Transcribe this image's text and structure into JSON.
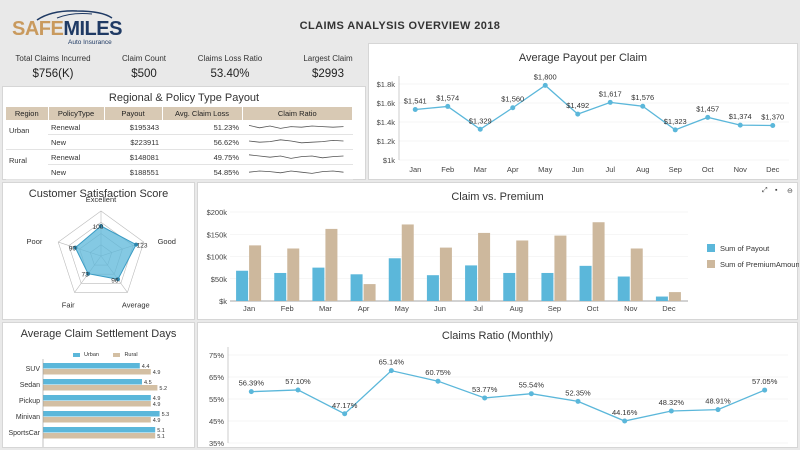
{
  "header": {
    "logo_main_1": "SAFE",
    "logo_main_2": "MILES",
    "logo_sub": "Auto Insurance",
    "title": "CLAIMS ANALYSIS OVERVIEW 2018"
  },
  "kpis": [
    {
      "label": "Total Claims Incurred",
      "value": "$756(K)"
    },
    {
      "label": "Claim Count",
      "value": "$500"
    },
    {
      "label": "Claims Loss Ratio",
      "value": "53.40%"
    },
    {
      "label": "Largest Claim",
      "value": "$2993"
    }
  ],
  "region_table": {
    "title": "Regional & Policy Type Payout",
    "headers": [
      "Region",
      "PolicyType",
      "Payout",
      "Avg. Claim Loss",
      "Claim Ratio"
    ],
    "rows": [
      {
        "region": "Urban",
        "type": "Renewal",
        "payout": "$195343",
        "avg": "51.23%",
        "spark": [
          0.55,
          0.35,
          0.5,
          0.3,
          0.45,
          0.4,
          0.5,
          0.45,
          0.4,
          0.45
        ]
      },
      {
        "region": "",
        "type": "New",
        "payout": "$223911",
        "avg": "56.62%",
        "spark": [
          0.5,
          0.4,
          0.45,
          0.6,
          0.5,
          0.35,
          0.4,
          0.45,
          0.55,
          0.5
        ]
      },
      {
        "region": "Rural",
        "type": "Renewal",
        "payout": "$148081",
        "avg": "49.75%",
        "spark": [
          0.6,
          0.5,
          0.4,
          0.5,
          0.3,
          0.45,
          0.5,
          0.35,
          0.45,
          0.5
        ]
      },
      {
        "region": "",
        "type": "New",
        "payout": "$188551",
        "avg": "54.85%",
        "spark": [
          0.4,
          0.5,
          0.45,
          0.35,
          0.5,
          0.4,
          0.3,
          0.45,
          0.5,
          0.4
        ]
      }
    ]
  },
  "satisfaction": {
    "title": "Customer Satisfaction Score",
    "axes": [
      "Excellent",
      "Good",
      "Average",
      "Fair",
      "Poor"
    ],
    "values": [
      100,
      123,
      96,
      73,
      90
    ],
    "max": 150,
    "color": "#5bb7da"
  },
  "settlement": {
    "title": "Average Claim Settlement Days",
    "legend": [
      "Urban",
      "Rural"
    ],
    "colors": [
      "#5bb7da",
      "#d3bfa3"
    ],
    "categories": [
      "SUV",
      "Sedan",
      "Pickup",
      "Minivan",
      "SportsCar"
    ],
    "urban": [
      4.4,
      4.5,
      4.9,
      5.3,
      5.1
    ],
    "rural": [
      4.9,
      5.2,
      4.9,
      4.9,
      5.1
    ],
    "urban_labels": [
      "4.4",
      "4.5",
      "4.9",
      "5.3",
      "5.1"
    ],
    "rural_labels": [
      "4.9",
      "5.2",
      "4.9",
      "4.9",
      "5.1"
    ]
  },
  "chart_data": [
    {
      "type": "line",
      "title": "Average Payout per Claim",
      "x": [
        "Jan",
        "Feb",
        "Mar",
        "Apr",
        "May",
        "Jun",
        "Jul",
        "Aug",
        "Sep",
        "Oct",
        "Nov",
        "Dec"
      ],
      "values": [
        1541,
        1574,
        1329,
        1560,
        1800,
        1492,
        1617,
        1576,
        1323,
        1457,
        1374,
        1370
      ],
      "labels": [
        "$1,541",
        "$1,574",
        "$1,329",
        "$1,560",
        "$1,800",
        "$1,492",
        "$1,617",
        "$1,576",
        "$1,323",
        "$1,457",
        "$1,374",
        "$1,370"
      ],
      "y_ticks": [
        "$1.8k",
        "$1.6k",
        "$1.4k",
        "$1.2k",
        "$1k"
      ],
      "ylim": [
        1000,
        1900
      ],
      "color": "#5bb7da"
    },
    {
      "type": "bar",
      "title": "Claim vs. Premium",
      "categories": [
        "Jan",
        "Feb",
        "Mar",
        "Apr",
        "May",
        "Jun",
        "Jul",
        "Aug",
        "Sep",
        "Oct",
        "Nov",
        "Dec"
      ],
      "series": [
        {
          "name": "Sum of Payout",
          "values": [
            68,
            63,
            75,
            60,
            96,
            58,
            80,
            63,
            63,
            79,
            55,
            10
          ],
          "color": "#5bb7da"
        },
        {
          "name": "Sum of PremiumAmount",
          "values": [
            125,
            118,
            162,
            38,
            172,
            120,
            153,
            136,
            147,
            177,
            118,
            20
          ],
          "color": "#cdb89d"
        }
      ],
      "y_ticks": [
        "$200k",
        "$150k",
        "$100k",
        "$50k",
        "$k"
      ],
      "ylim": [
        0,
        200
      ],
      "legend_position": "right"
    },
    {
      "type": "line",
      "title": "Claims Ratio (Monthly)",
      "values": [
        56.39,
        57.1,
        47.17,
        65.14,
        60.75,
        53.77,
        55.54,
        52.35,
        44.16,
        48.32,
        48.91,
        57.05
      ],
      "labels": [
        "56.39%",
        "57.10%",
        "47.17%",
        "65.14%",
        "60.75%",
        "53.77%",
        "55.54%",
        "52.35%",
        "44.16%",
        "48.32%",
        "48.91%",
        "57.05%"
      ],
      "y_ticks": [
        "75%",
        "65%",
        "55%",
        "45%",
        "35%"
      ],
      "ylim": [
        35,
        75
      ],
      "color": "#5bb7da"
    }
  ],
  "toolbar_icons": [
    "expand-icon",
    "export-icon",
    "more-icon"
  ]
}
